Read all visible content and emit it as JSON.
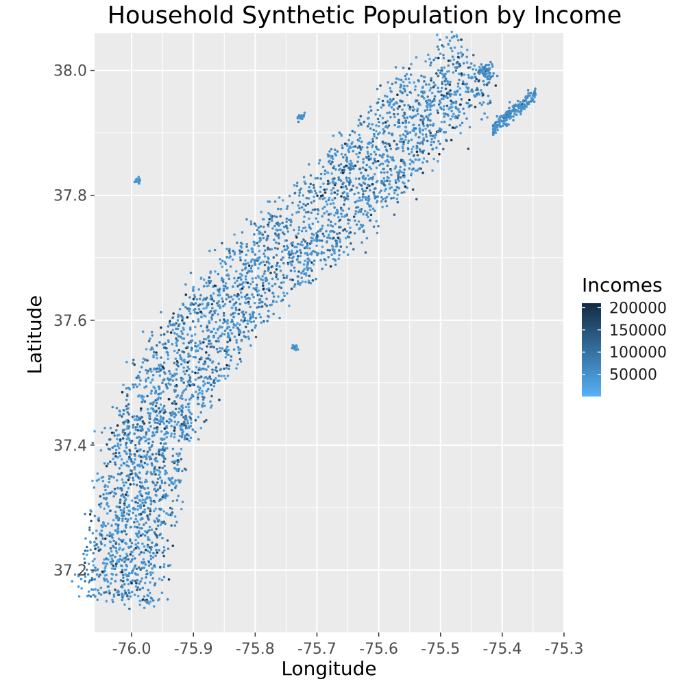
{
  "chart_data": {
    "type": "scatter",
    "title": "Household Synthetic Population by Income",
    "xlabel": "Longitude",
    "ylabel": "Latitude",
    "xlim": [
      -76.06,
      -75.3
    ],
    "ylim": [
      37.1,
      38.06
    ],
    "x_ticks": [
      -76.0,
      -75.9,
      -75.8,
      -75.7,
      -75.6,
      -75.5,
      -75.4,
      -75.3
    ],
    "x_tick_labels": [
      "-76.0",
      "-75.9",
      "-75.8",
      "-75.7",
      "-75.6",
      "-75.5",
      "-75.4",
      "-75.3"
    ],
    "y_ticks": [
      37.2,
      37.4,
      37.6,
      37.8,
      38.0
    ],
    "y_tick_labels": [
      "37.2",
      "37.4",
      "37.6",
      "37.8",
      "38.0"
    ],
    "grid": true,
    "panel_background": "#ebebeb",
    "grid_color": "#ffffff",
    "legend": {
      "title": "Incomes",
      "placement": "right",
      "breaks": [
        200000,
        150000,
        100000,
        50000
      ],
      "labels": [
        "200000",
        "150000",
        "100000",
        "50000"
      ],
      "range": [
        0,
        210000
      ],
      "color_low": "#56b1f7",
      "color_high": "#132b43"
    },
    "spine_polyline": [
      [
        -76.02,
        37.15
      ],
      [
        -76.0,
        37.3
      ],
      [
        -75.96,
        37.45
      ],
      [
        -75.9,
        37.55
      ],
      [
        -75.83,
        37.65
      ],
      [
        -75.75,
        37.72
      ],
      [
        -75.68,
        37.77
      ],
      [
        -75.62,
        37.83
      ],
      [
        -75.57,
        37.9
      ],
      [
        -75.5,
        37.97
      ],
      [
        -75.44,
        38.0
      ]
    ],
    "clusters": [
      {
        "lon": -75.38,
        "lat": 37.935,
        "income": 55000
      },
      {
        "lon": -75.425,
        "lat": 38.0,
        "income": 60000
      },
      {
        "lon": -75.99,
        "lat": 37.823,
        "income": 45000
      },
      {
        "lon": -75.725,
        "lat": 37.925,
        "income": 50000
      },
      {
        "lon": -75.735,
        "lat": 37.555,
        "income": 40000
      },
      {
        "lon": -75.455,
        "lat": 37.87,
        "income": 150000
      }
    ]
  }
}
